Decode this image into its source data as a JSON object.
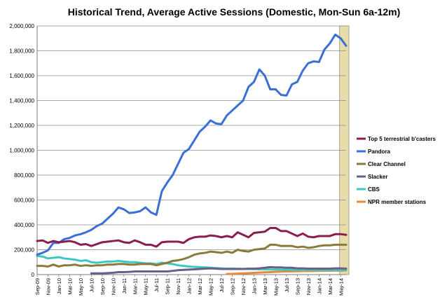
{
  "chart_data": {
    "type": "line",
    "title": "Historical Trend, Average Active Sessions (Domestic, Mon-Sun 6a-12m)",
    "xlabel": "",
    "ylabel": "",
    "ylim": [
      0,
      2000000
    ],
    "yticks": [
      0,
      200000,
      400000,
      600000,
      800000,
      1000000,
      1200000,
      1400000,
      1600000,
      1800000,
      2000000
    ],
    "ytick_labels": [
      "0",
      "200,000",
      "400,000",
      "600,000",
      "800,000",
      "1,000,000",
      "1,200,000",
      "1,400,000",
      "1,600,000",
      "1,800,000",
      "2,000,000"
    ],
    "grid": true,
    "legend_position": "right",
    "highlight": {
      "from": "May-14",
      "to": "Jun-14",
      "color": "#e8dca8"
    },
    "categories": [
      "Sep-09",
      "Oct-09",
      "Nov-09",
      "Dec-09",
      "Jan-10",
      "Feb-10",
      "Mar-10",
      "Apr-10",
      "May-10",
      "Jun-10",
      "Jul-10",
      "Aug-10",
      "Sep-10",
      "Oct-10",
      "Nov-10",
      "Dec-10",
      "Jan-11",
      "Feb-11",
      "Mar-11",
      "Apr-11",
      "May-11",
      "Jun-11",
      "Jul-11",
      "Aug-11",
      "Sep-11",
      "Oct-11",
      "Nov-11",
      "Dec-11",
      "Jan-12",
      "Feb-12",
      "Mar-12",
      "Apr-12",
      "May-12",
      "Jun-12",
      "Jul-12",
      "Aug-12",
      "Sep-12",
      "Oct-12",
      "Nov-12",
      "Dec-12",
      "Jan-13",
      "Feb-13",
      "Mar-13",
      "Apr-13",
      "May-13",
      "Jun-13",
      "Jul-13",
      "Aug-13",
      "Sep-13",
      "Oct-13",
      "Nov-13",
      "Dec-13",
      "Jan-14",
      "Feb-14",
      "Mar-14",
      "Apr-14",
      "May-14",
      "Jun-14"
    ],
    "tick_labels": [
      "Sep-09",
      "Nov-09",
      "Jan-10",
      "Mar-10",
      "May-10",
      "Jul-10",
      "Sep-10",
      "Nov-10",
      "Jan-11",
      "Mar-11",
      "May-11",
      "Jul-11",
      "Sep-11",
      "Nov-11",
      "Jan-12",
      "Mar-12",
      "May-12",
      "Jul-12",
      "Sep-12",
      "Nov-12",
      "Jan-13",
      "Mar-13",
      "May-13",
      "Jul-13",
      "Sep-13",
      "Nov-13",
      "Jan-14",
      "Mar-14",
      "May-14"
    ],
    "series": [
      {
        "name": "Top 5 terrestrial b'casters",
        "color": "#8b1e4e",
        "values": [
          270000,
          275000,
          255000,
          270000,
          260000,
          265000,
          270000,
          260000,
          240000,
          245000,
          230000,
          245000,
          260000,
          265000,
          270000,
          275000,
          260000,
          255000,
          275000,
          260000,
          240000,
          240000,
          225000,
          260000,
          265000,
          265000,
          265000,
          255000,
          285000,
          300000,
          305000,
          305000,
          315000,
          310000,
          300000,
          310000,
          300000,
          340000,
          320000,
          300000,
          335000,
          340000,
          345000,
          375000,
          375000,
          350000,
          350000,
          330000,
          310000,
          330000,
          305000,
          300000,
          310000,
          310000,
          310000,
          325000,
          325000,
          320000
        ]
      },
      {
        "name": "Pandora",
        "color": "#3a6fd8",
        "values": [
          160000,
          175000,
          195000,
          255000,
          255000,
          285000,
          295000,
          315000,
          325000,
          340000,
          360000,
          390000,
          410000,
          450000,
          490000,
          540000,
          525000,
          495000,
          500000,
          510000,
          540000,
          500000,
          480000,
          670000,
          740000,
          800000,
          890000,
          980000,
          1010000,
          1080000,
          1150000,
          1190000,
          1240000,
          1215000,
          1210000,
          1280000,
          1320000,
          1360000,
          1400000,
          1510000,
          1550000,
          1650000,
          1600000,
          1490000,
          1490000,
          1445000,
          1440000,
          1530000,
          1550000,
          1640000,
          1700000,
          1715000,
          1710000,
          1810000,
          1860000,
          1930000,
          1900000,
          1840000
        ]
      },
      {
        "name": "Clear Channel",
        "color": "#8b7a3a",
        "values": [
          70000,
          70000,
          65000,
          80000,
          65000,
          75000,
          75000,
          80000,
          70000,
          75000,
          70000,
          75000,
          75000,
          80000,
          80000,
          85000,
          85000,
          80000,
          80000,
          85000,
          85000,
          85000,
          75000,
          85000,
          95000,
          110000,
          115000,
          125000,
          140000,
          160000,
          170000,
          175000,
          185000,
          180000,
          175000,
          185000,
          175000,
          200000,
          190000,
          185000,
          200000,
          205000,
          210000,
          240000,
          240000,
          230000,
          230000,
          230000,
          220000,
          225000,
          215000,
          220000,
          230000,
          235000,
          235000,
          240000,
          240000,
          240000
        ]
      },
      {
        "name": "Slacker",
        "color": "#6a5f8a",
        "values": [
          null,
          null,
          null,
          null,
          null,
          null,
          null,
          null,
          null,
          null,
          10000,
          10000,
          10000,
          12000,
          15000,
          20000,
          20000,
          22000,
          25000,
          25000,
          25000,
          25000,
          25000,
          25000,
          25000,
          30000,
          35000,
          38000,
          40000,
          42000,
          45000,
          48000,
          50000,
          48000,
          45000,
          45000,
          45000,
          45000,
          45000,
          48000,
          48000,
          50000,
          55000,
          60000,
          58000,
          58000,
          55000,
          55000,
          50000,
          50000,
          48000,
          48000,
          48000,
          48000,
          48000,
          50000,
          50000,
          48000
        ]
      },
      {
        "name": "CBS",
        "color": "#3cc8c0",
        "values": [
          150000,
          145000,
          130000,
          135000,
          140000,
          130000,
          125000,
          120000,
          110000,
          115000,
          100000,
          95000,
          100000,
          105000,
          105000,
          110000,
          105000,
          100000,
          100000,
          95000,
          90000,
          90000,
          85000,
          95000,
          90000,
          85000,
          75000,
          70000,
          65000,
          62000,
          60000,
          58000,
          55000,
          52000,
          50000,
          48000,
          48000,
          47000,
          46000,
          45000,
          44000,
          43000,
          42000,
          41000,
          40000,
          40000,
          39000,
          39000,
          38000,
          38000,
          38000,
          38000,
          37000,
          37000,
          37000,
          37000,
          37000,
          36000
        ]
      },
      {
        "name": "NPR member stations",
        "color": "#e88a3a",
        "values": [
          null,
          null,
          null,
          null,
          null,
          null,
          null,
          null,
          null,
          null,
          null,
          null,
          null,
          null,
          null,
          null,
          null,
          null,
          null,
          null,
          null,
          null,
          null,
          null,
          null,
          null,
          null,
          null,
          null,
          null,
          null,
          null,
          null,
          null,
          null,
          5000,
          6000,
          8000,
          10000,
          12000,
          14000,
          16000,
          18000,
          20000,
          22000,
          24000,
          25000,
          26000,
          27000,
          28000,
          28000,
          29000,
          30000,
          30000,
          31000,
          32000,
          32000,
          33000
        ]
      }
    ]
  }
}
